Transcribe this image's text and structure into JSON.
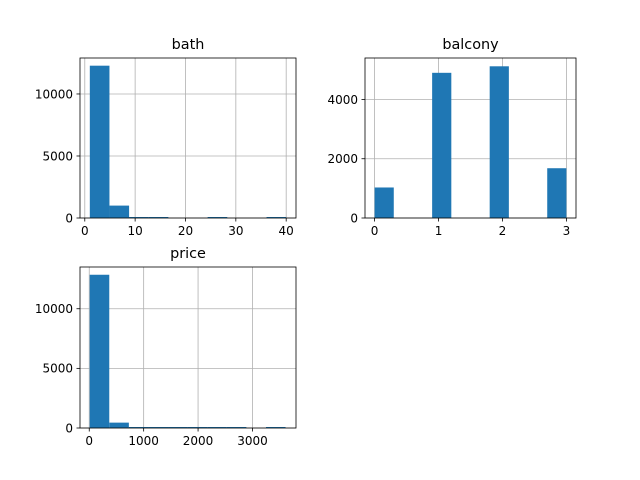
{
  "chart_data": [
    {
      "type": "bar",
      "subtype": "histogram",
      "title": "bath",
      "xlabel": "",
      "ylabel": "",
      "xlim": [
        -0.95,
        41.95
      ],
      "ylim": [
        0,
        12900
      ],
      "xticks": [
        0,
        10,
        20,
        30,
        40
      ],
      "yticks": [
        0,
        5000,
        10000
      ],
      "grid": true,
      "bins": [
        {
          "x0": 1.0,
          "x1": 4.9,
          "count": 12280
        },
        {
          "x0": 4.9,
          "x1": 8.8,
          "count": 1000
        },
        {
          "x0": 8.8,
          "x1": 12.7,
          "count": 80
        },
        {
          "x0": 12.7,
          "x1": 16.6,
          "count": 10
        },
        {
          "x0": 16.6,
          "x1": 20.5,
          "count": 0
        },
        {
          "x0": 20.5,
          "x1": 24.4,
          "count": 0
        },
        {
          "x0": 24.4,
          "x1": 28.3,
          "count": 1
        },
        {
          "x0": 28.3,
          "x1": 32.2,
          "count": 0
        },
        {
          "x0": 32.2,
          "x1": 36.1,
          "count": 0
        },
        {
          "x0": 36.1,
          "x1": 40.0,
          "count": 1
        }
      ]
    },
    {
      "type": "bar",
      "subtype": "histogram",
      "title": "balcony",
      "xlabel": "",
      "ylabel": "",
      "xlim": [
        -0.15,
        3.15
      ],
      "ylim": [
        0,
        5400
      ],
      "xticks": [
        0,
        1,
        2,
        3
      ],
      "yticks": [
        0,
        2000,
        4000
      ],
      "grid": true,
      "bins": [
        {
          "x0": 0.0,
          "x1": 0.3,
          "count": 1030
        },
        {
          "x0": 0.3,
          "x1": 0.6,
          "count": 0
        },
        {
          "x0": 0.6,
          "x1": 0.9,
          "count": 0
        },
        {
          "x0": 0.9,
          "x1": 1.2,
          "count": 4900
        },
        {
          "x0": 1.2,
          "x1": 1.5,
          "count": 0
        },
        {
          "x0": 1.5,
          "x1": 1.8,
          "count": 0
        },
        {
          "x0": 1.8,
          "x1": 2.1,
          "count": 5120
        },
        {
          "x0": 2.1,
          "x1": 2.4,
          "count": 0
        },
        {
          "x0": 2.4,
          "x1": 2.7,
          "count": 0
        },
        {
          "x0": 2.7,
          "x1": 3.0,
          "count": 1680
        }
      ]
    },
    {
      "type": "bar",
      "subtype": "histogram",
      "title": "price",
      "xlabel": "",
      "ylabel": "",
      "xlim": [
        -170,
        3800
      ],
      "ylim": [
        0,
        13500
      ],
      "xticks": [
        0,
        1000,
        2000,
        3000
      ],
      "yticks": [
        0,
        5000,
        10000
      ],
      "grid": true,
      "bins": [
        {
          "x0": 8,
          "x1": 368,
          "count": 12850
        },
        {
          "x0": 368,
          "x1": 728,
          "count": 450
        },
        {
          "x0": 728,
          "x1": 1088,
          "count": 60
        },
        {
          "x0": 1088,
          "x1": 1448,
          "count": 15
        },
        {
          "x0": 1448,
          "x1": 1808,
          "count": 5
        },
        {
          "x0": 1808,
          "x1": 2168,
          "count": 3
        },
        {
          "x0": 2168,
          "x1": 2528,
          "count": 2
        },
        {
          "x0": 2528,
          "x1": 2888,
          "count": 1
        },
        {
          "x0": 2888,
          "x1": 3248,
          "count": 0
        },
        {
          "x0": 3248,
          "x1": 3608,
          "count": 1
        }
      ]
    }
  ],
  "colors": {
    "bar": "#1f77b4"
  }
}
